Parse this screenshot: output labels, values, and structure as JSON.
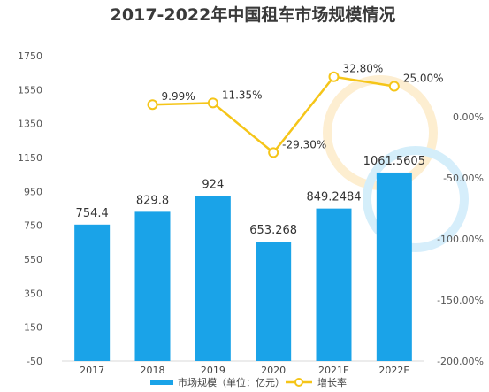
{
  "chart_data": {
    "type": "bar",
    "title": "2017-2022年中国租车市场规模情况",
    "categories": [
      "2017",
      "2018",
      "2019",
      "2020",
      "2021E",
      "2022E"
    ],
    "y_left": {
      "range": [
        -50,
        1750
      ],
      "ticks": [
        "-50",
        "150",
        "350",
        "550",
        "750",
        "950",
        "1150",
        "1350",
        "1550",
        "1750"
      ]
    },
    "y_right": {
      "range": [
        -200,
        50
      ],
      "ticks": [
        "-200.00%",
        "-150.00%",
        "-100.00%",
        "-50.00%",
        "0.00%"
      ]
    },
    "grid": false,
    "legend_position": "bottom",
    "series": [
      {
        "name": "市场规模（单位：亿元）",
        "type": "bar",
        "axis": "left",
        "color": "#1aa3e8",
        "values": [
          754.4,
          829.8,
          924,
          653.268,
          849.2484,
          1061.5605
        ],
        "labels": [
          "754.4",
          "829.8",
          "924",
          "653.268",
          "849.2484",
          "1061.5605"
        ]
      },
      {
        "name": "增长率",
        "type": "line",
        "axis": "right",
        "color": "#f5c518",
        "values": [
          null,
          9.99,
          11.35,
          -29.3,
          32.8,
          25.0
        ],
        "labels": [
          "",
          "9.99%",
          "11.35%",
          "-29.30%",
          "32.80%",
          "25.00%"
        ]
      }
    ]
  }
}
